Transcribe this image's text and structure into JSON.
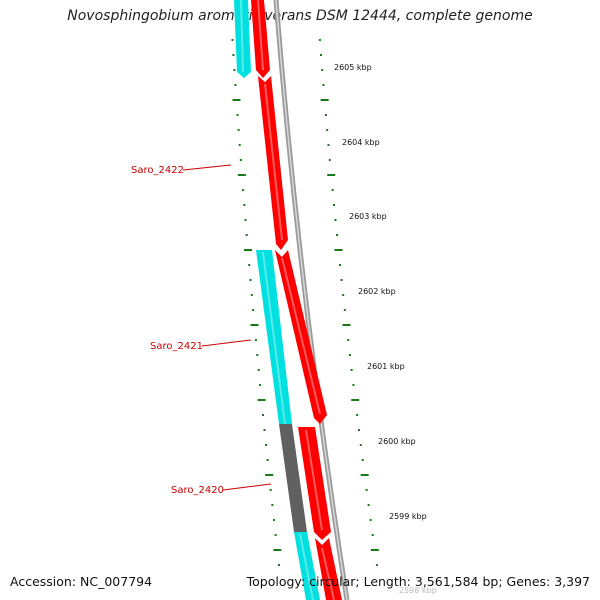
{
  "title": "Novosphingobium aromaticivorans DSM 12444, complete genome",
  "accession_text": "Accession: NC_007794",
  "summary_text": "Topology: circular; Length: 3,561,584 bp; Genes: 3,397",
  "colors": {
    "cds_forward": "#ff0000",
    "cds_reverse": "#00e0e0",
    "cds_other": "#606060",
    "backbone": "#808080",
    "ticks": "#1a7a1a",
    "label": "#cc0000",
    "text": "#111111"
  },
  "scale_labels": [
    "2605 kbp",
    "2604 kbp",
    "2603 kbp",
    "2602 kbp",
    "2601 kbp",
    "2600 kbp",
    "2599 kbp",
    "2598 kbp"
  ],
  "gene_labels": [
    "Saro_2422",
    "Saro_2421",
    "Saro_2420"
  ]
}
